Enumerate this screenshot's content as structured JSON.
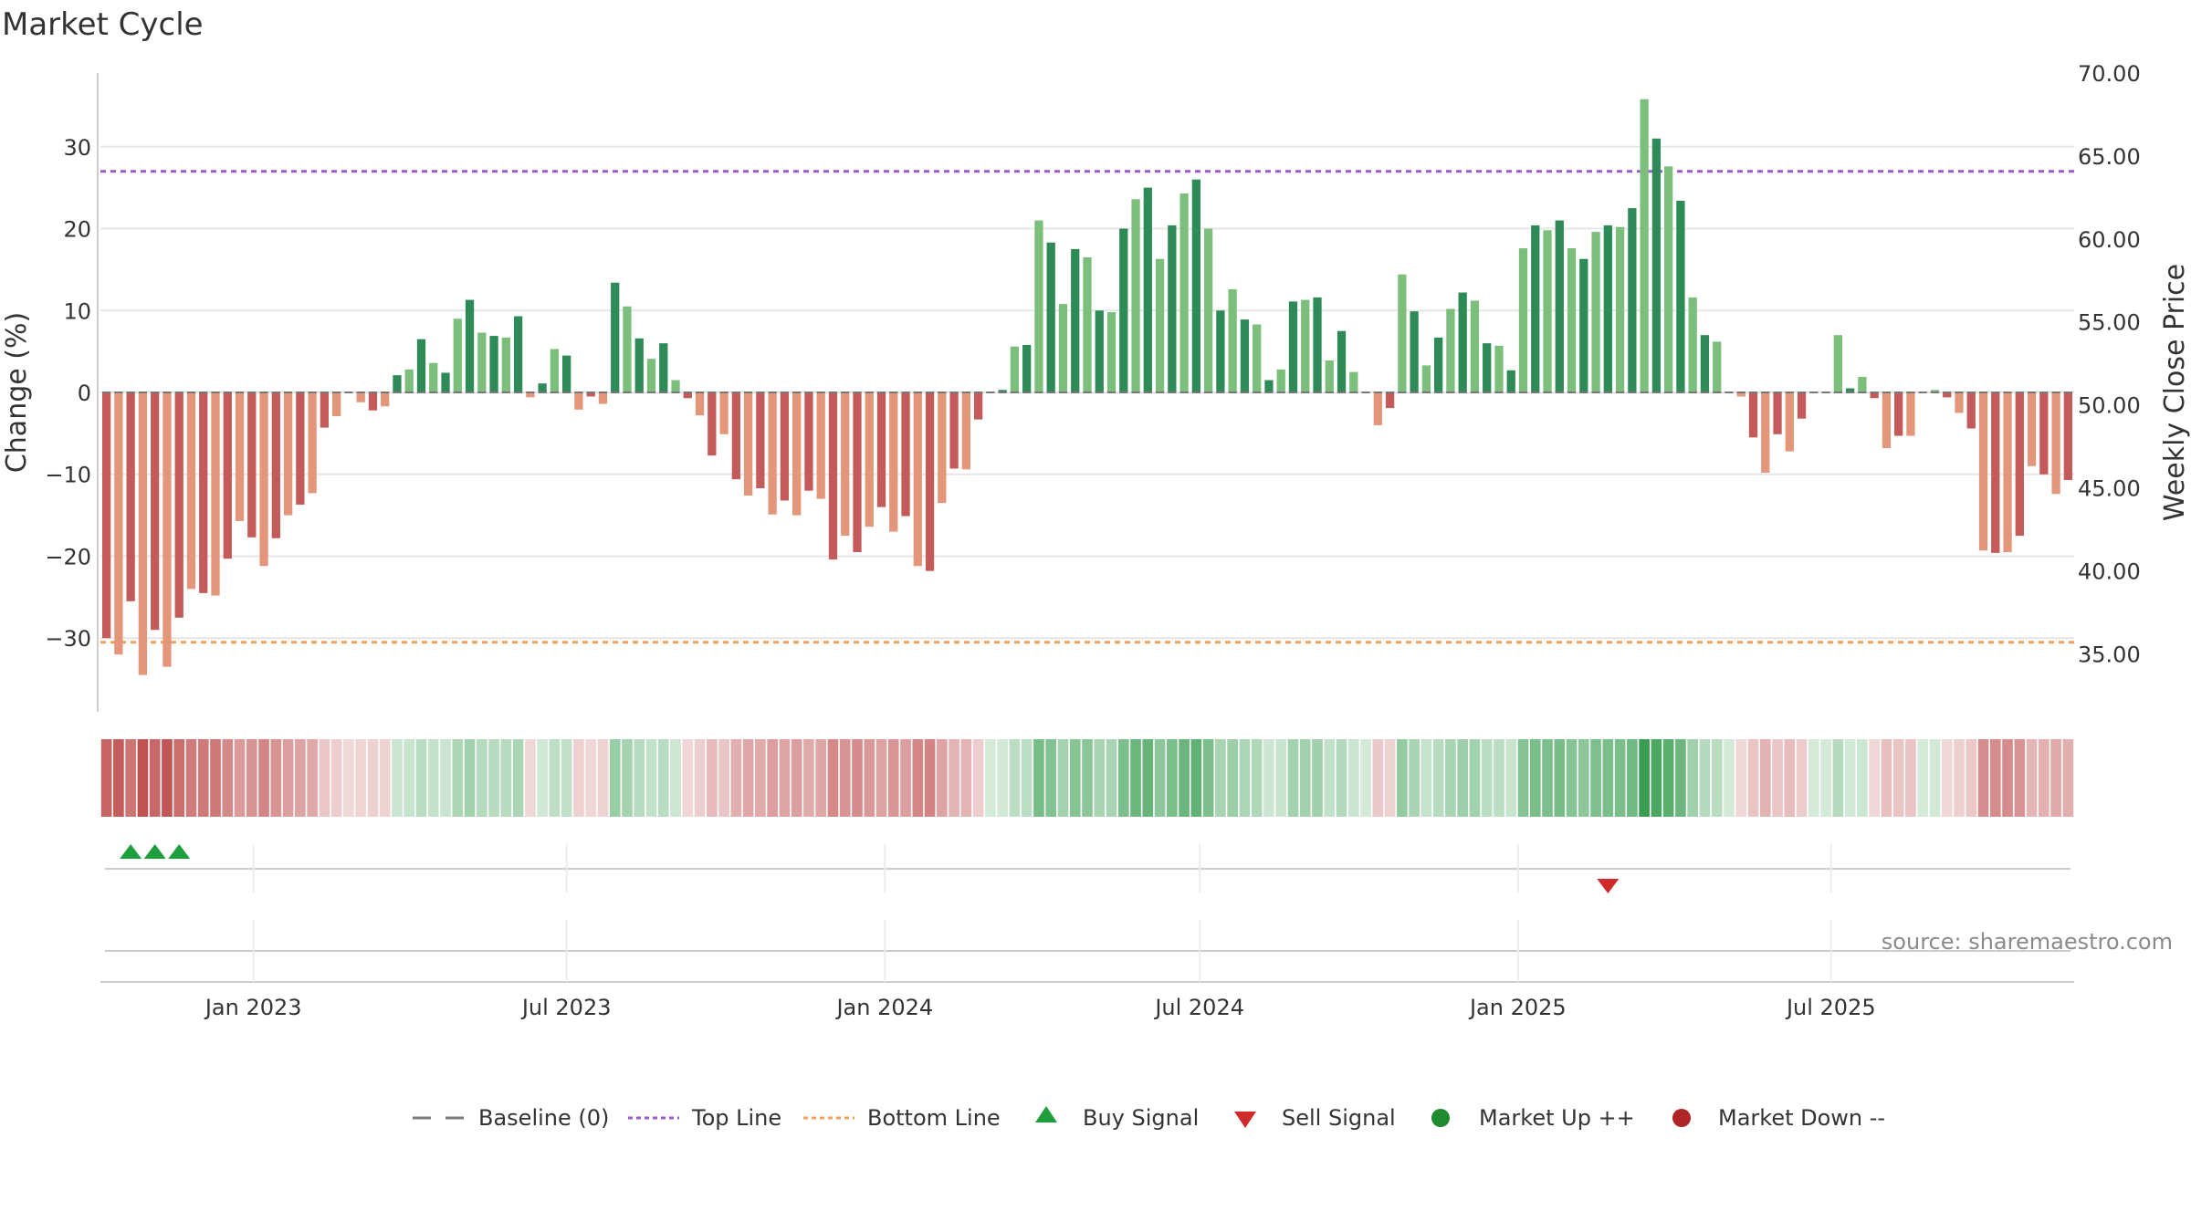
{
  "chart_data": {
    "type": "bar",
    "title": "Market Cycle",
    "ylabel": "Change (%)",
    "y2label": "Weekly Close Price",
    "ylim": [
      -39,
      39
    ],
    "y2lim": [
      31.5,
      70.0
    ],
    "yticks": [
      "30",
      "20",
      "10",
      "0",
      "−10",
      "−20",
      "−30"
    ],
    "yticks_values": [
      30,
      20,
      10,
      0,
      -10,
      -20,
      -30
    ],
    "y2ticks": [
      "70.00",
      "65.00",
      "60.00",
      "55.00",
      "50.00",
      "45.00",
      "40.00",
      "35.00"
    ],
    "y2ticks_values": [
      70,
      65,
      60,
      55,
      50,
      45,
      40,
      35
    ],
    "x_start_date": "2022-10-08",
    "x_ticks": [
      "Jan 2023",
      "Jul 2023",
      "Jan 2024",
      "Jul 2024",
      "Jan 2025",
      "Jul 2025"
    ],
    "x_ticks_dates": [
      "2023-01-01",
      "2023-07-01",
      "2024-01-01",
      "2024-07-01",
      "2025-01-01",
      "2025-07-01"
    ],
    "top_line": 27.0,
    "bottom_line": -30.5,
    "grid": true,
    "legend_position": "bottom",
    "values": [
      -30,
      -32,
      -25.5,
      -34.5,
      -29,
      -33.5,
      -27.5,
      -24,
      -24.5,
      -24.8,
      -20.3,
      -15.7,
      -17.7,
      -21.2,
      -17.8,
      -15,
      -13.7,
      -12.3,
      -4.3,
      -2.9,
      -0.2,
      -1.2,
      -2.2,
      -1.7,
      2.1,
      2.8,
      6.5,
      3.6,
      2.4,
      9,
      11.3,
      7.3,
      6.9,
      6.7,
      9.3,
      -0.6,
      1.1,
      5.3,
      4.5,
      -2.1,
      -0.5,
      -1.4,
      13.4,
      10.5,
      6.6,
      4.1,
      6,
      1.5,
      -0.7,
      -2.8,
      -7.7,
      -5.1,
      -10.6,
      -12.6,
      -11.7,
      -14.9,
      -13.2,
      -15,
      -12,
      -13,
      -20.4,
      -17.5,
      -19.5,
      -16.4,
      -14,
      -17,
      -15.1,
      -21.2,
      -21.8,
      -13.5,
      -9.3,
      -9.4,
      -3.3,
      0,
      0.3,
      5.6,
      5.8,
      21,
      18.3,
      10.8,
      17.5,
      16.5,
      10,
      9.8,
      20,
      23.6,
      25,
      16.3,
      20.4,
      24.3,
      26,
      20,
      10,
      12.6,
      8.9,
      8.3,
      1.5,
      2.8,
      11.1,
      11.3,
      11.6,
      3.9,
      7.5,
      2.5,
      0,
      -4,
      -1.9,
      14.4,
      9.9,
      3.3,
      6.7,
      10.2,
      12.2,
      11.2,
      6,
      5.7,
      2.7,
      17.6,
      20.4,
      19.8,
      21,
      17.6,
      16.3,
      19.6,
      20.4,
      20.2,
      22.5,
      35.8,
      31,
      27.6,
      23.4,
      11.6,
      7,
      6.2,
      0,
      -0.5,
      -5.5,
      -9.8,
      -5.1,
      -7.2,
      -3.2,
      0,
      0,
      7,
      0.5,
      1.9,
      -0.7,
      -6.8,
      -5.3,
      -5.3,
      0,
      0.3,
      -0.6,
      -2.5,
      -4.4,
      -19.3,
      -19.6,
      -19.5,
      -17.5,
      -9,
      -10,
      -12.4,
      -10.7
    ],
    "buy_signals": [
      "2022-10-22",
      "2022-11-05",
      "2022-11-19"
    ],
    "sell_signals": [
      "2025-02-22"
    ],
    "price_series": "Weekly Close Price",
    "colors": {
      "strong_up": "#2e8b57",
      "weak_up": "#7cbf7c",
      "strong_down": "#c45a5a",
      "weak_down": "#e3967a",
      "top_line": "#9b59d0",
      "bottom_line": "#f0a05a",
      "buy": "#1f9e3d",
      "sell": "#d12a2a",
      "market_up": "#1f8a2e",
      "market_down": "#b02525",
      "grid": "#e6e6e6"
    }
  },
  "legend": {
    "baseline": "Baseline (0)",
    "top_line": "Top Line",
    "bottom_line": "Bottom Line",
    "buy": "Buy Signal",
    "sell": "Sell Signal",
    "market_up": "Market Up ++",
    "market_down": "Market Down --"
  },
  "source": "source: sharemaestro.com"
}
